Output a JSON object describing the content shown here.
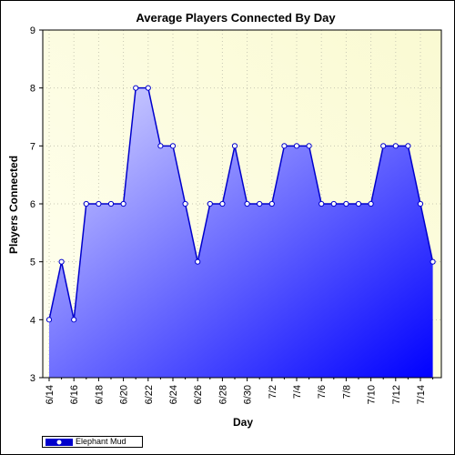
{
  "chart_data": {
    "type": "area",
    "title": "Average Players Connected By Day",
    "xlabel": "Day",
    "ylabel": "Players Connected",
    "ylim": [
      3,
      9
    ],
    "yticks": [
      "3",
      "4",
      "5",
      "6",
      "7",
      "8",
      "9"
    ],
    "grid": true,
    "legend_position": "bottom-left",
    "x": [
      "6/14",
      "6/15",
      "6/16",
      "6/17",
      "6/18",
      "6/19",
      "6/20",
      "6/21",
      "6/22",
      "6/23",
      "6/24",
      "6/25",
      "6/26",
      "6/27",
      "6/28",
      "6/29",
      "6/30",
      "7/1",
      "7/2",
      "7/3",
      "7/4",
      "7/5",
      "7/6",
      "7/7",
      "7/8",
      "7/9",
      "7/10",
      "7/11",
      "7/12",
      "7/13",
      "7/14",
      "7/15"
    ],
    "xtick_labels": [
      "6/14",
      "6/16",
      "6/18",
      "6/20",
      "6/22",
      "6/24",
      "6/26",
      "6/28",
      "6/30",
      "7/2",
      "7/4",
      "7/6",
      "7/8",
      "7/10",
      "7/12",
      "7/14"
    ],
    "series": [
      {
        "name": "Elephant Mud",
        "values": [
          4,
          5,
          4,
          6,
          6,
          6,
          6,
          8,
          8,
          7,
          7,
          6,
          5,
          6,
          6,
          7,
          6,
          6,
          6,
          7,
          7,
          7,
          6,
          6,
          6,
          6,
          6,
          7,
          7,
          7,
          6,
          5
        ]
      }
    ]
  },
  "colors": {
    "plot_bg_light": "#fffff0",
    "plot_bg_dark": "#fafad2",
    "line": "#0000cc",
    "fill_light": "#dcdcff",
    "fill_dark": "#0000ff",
    "marker_fill": "#ffffff"
  }
}
